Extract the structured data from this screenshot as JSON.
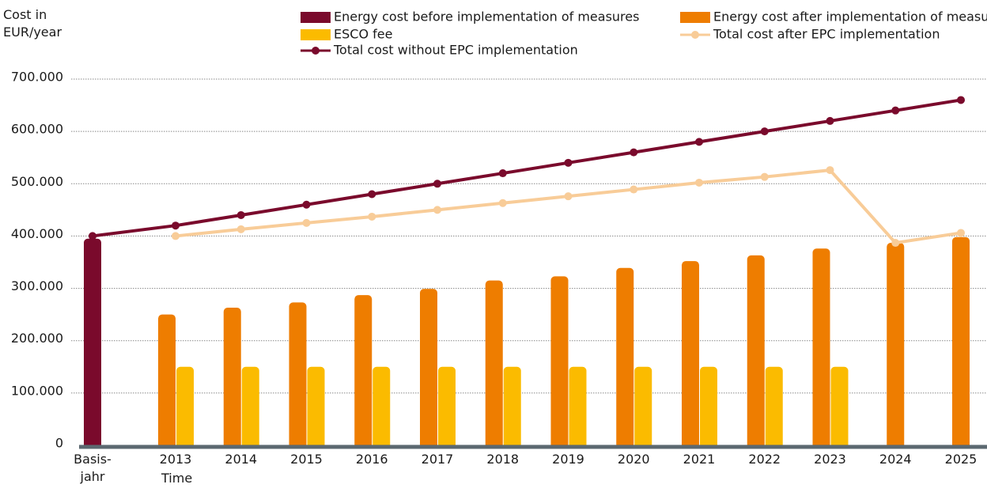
{
  "chart_data": {
    "type": "bar",
    "y_axis_label": "Cost in EUR/year",
    "x_axis_label": "Time",
    "categories": [
      "Basis-jahr",
      "2013",
      "2014",
      "2015",
      "2016",
      "2017",
      "2018",
      "2019",
      "2020",
      "2021",
      "2022",
      "2023",
      "2024",
      "2025"
    ],
    "series": [
      {
        "name": "Energy cost before implementation of measures",
        "type": "bar",
        "color": "#7a0a2c",
        "values": [
          395000,
          null,
          null,
          null,
          null,
          null,
          null,
          null,
          null,
          null,
          null,
          null,
          null,
          null
        ]
      },
      {
        "name": "Energy cost after implementation of measure",
        "type": "bar",
        "color": "#ee7d00",
        "values": [
          null,
          250000,
          263000,
          273000,
          287000,
          299000,
          315000,
          323000,
          339000,
          352000,
          363000,
          376000,
          387000,
          398000
        ]
      },
      {
        "name": "ESCO fee",
        "type": "bar",
        "color": "#fbbb00",
        "values": [
          null,
          150000,
          150000,
          150000,
          150000,
          150000,
          150000,
          150000,
          150000,
          150000,
          150000,
          150000,
          null,
          null
        ]
      },
      {
        "name": "Total cost after EPC implementation",
        "type": "line",
        "color": "#f8cc98",
        "values": [
          null,
          400000,
          413000,
          425000,
          437000,
          450000,
          463000,
          476000,
          489000,
          502000,
          513000,
          526000,
          387000,
          406000
        ]
      },
      {
        "name": "Total cost without EPC implementation",
        "type": "line",
        "color": "#7a0a2c",
        "values": [
          400000,
          420000,
          440000,
          460000,
          480000,
          500000,
          520000,
          540000,
          560000,
          580000,
          600000,
          620000,
          640000,
          660000
        ]
      }
    ],
    "ylim": [
      0,
      700000
    ],
    "yticks": [
      0,
      {
        "value": 100000,
        "label": "100.000"
      },
      {
        "value": 200000,
        "label": "200.000"
      },
      {
        "value": 300000,
        "label": "300.000"
      },
      {
        "value": 400000,
        "label": "400.000"
      },
      {
        "value": 500000,
        "label": "500.000"
      },
      {
        "value": 600000,
        "label": "600.000"
      },
      {
        "value": 700000,
        "label": "700.000"
      }
    ],
    "grid": true
  }
}
